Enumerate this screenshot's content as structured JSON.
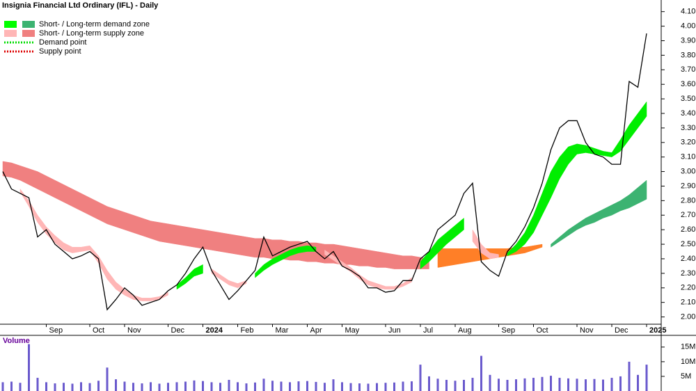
{
  "chart_data": {
    "type": "price-zones",
    "title": "Insignia Financial Ltd Ordinary (IFL) - Daily",
    "legend": [
      {
        "label": "Short- / Long-term demand zone",
        "colors": [
          "#00ff00",
          "#3cb371"
        ]
      },
      {
        "label": "Short- / Long-term supply zone",
        "colors": [
          "#ffb6b6",
          "#f08080"
        ]
      },
      {
        "label": "Demand point",
        "colors": [
          "#00dd00"
        ],
        "dotted": true
      },
      {
        "label": "Supply point",
        "colors": [
          "#dd0000"
        ],
        "dotted": true
      }
    ],
    "categories": [
      null,
      null,
      null,
      null,
      null,
      "Sep",
      null,
      null,
      null,
      null,
      "Oct",
      null,
      null,
      null,
      "Nov",
      null,
      null,
      null,
      null,
      "Dec",
      null,
      null,
      null,
      "2024",
      null,
      null,
      null,
      "Feb",
      null,
      null,
      null,
      "Mar",
      null,
      null,
      null,
      "Apr",
      null,
      null,
      null,
      "May",
      null,
      null,
      null,
      null,
      "Jun",
      null,
      null,
      null,
      "Jul",
      null,
      null,
      null,
      "Aug",
      null,
      null,
      null,
      null,
      "Sep",
      null,
      null,
      null,
      "Oct",
      null,
      null,
      null,
      null,
      "Nov",
      null,
      null,
      null,
      "Dec",
      null,
      null,
      null,
      "2025"
    ],
    "price": {
      "color": "#000000",
      "values": [
        3.0,
        2.88,
        2.85,
        2.82,
        2.55,
        2.6,
        2.5,
        2.45,
        2.4,
        2.42,
        2.45,
        2.4,
        2.05,
        2.12,
        2.2,
        2.15,
        2.08,
        2.1,
        2.12,
        2.18,
        2.22,
        2.3,
        2.4,
        2.48,
        2.32,
        2.22,
        2.12,
        2.18,
        2.25,
        2.32,
        2.55,
        2.42,
        2.45,
        2.48,
        2.5,
        2.52,
        2.45,
        2.4,
        2.45,
        2.35,
        2.32,
        2.28,
        2.2,
        2.2,
        2.17,
        2.18,
        2.25,
        2.25,
        2.4,
        2.45,
        2.6,
        2.65,
        2.7,
        2.85,
        2.92,
        2.38,
        2.32,
        2.28,
        2.45,
        2.52,
        2.62,
        2.75,
        2.92,
        3.15,
        3.3,
        3.35,
        3.35,
        3.2,
        3.12,
        3.1,
        3.05,
        3.05,
        3.62,
        3.58,
        3.95
      ]
    },
    "zones": [
      {
        "color": "#f08080",
        "upper": [
          3.07,
          3.06,
          3.04,
          3.02,
          3.0,
          2.97,
          2.94,
          2.91,
          2.88,
          2.85,
          2.82,
          2.79,
          2.76,
          2.74,
          2.72,
          2.7,
          2.68,
          2.66,
          2.65,
          2.64,
          2.63,
          2.62,
          2.61,
          2.6,
          2.59,
          2.58,
          2.57,
          2.56,
          2.55,
          2.54,
          2.54,
          2.53,
          2.53,
          2.52,
          2.52,
          2.51,
          2.51,
          2.5,
          2.5,
          2.49,
          2.48,
          2.47,
          2.46,
          2.45,
          2.44,
          2.43,
          2.42,
          2.42,
          2.41,
          2.4,
          null,
          null,
          null,
          null,
          null,
          null,
          null,
          null,
          null,
          null,
          null,
          null,
          null,
          null,
          null,
          null,
          null,
          null,
          null,
          null,
          null,
          null,
          null,
          null,
          null
        ],
        "lower": [
          2.97,
          2.96,
          2.94,
          2.91,
          2.88,
          2.85,
          2.82,
          2.79,
          2.76,
          2.73,
          2.7,
          2.67,
          2.64,
          2.62,
          2.6,
          2.58,
          2.56,
          2.54,
          2.52,
          2.51,
          2.5,
          2.49,
          2.48,
          2.47,
          2.46,
          2.45,
          2.44,
          2.43,
          2.42,
          2.41,
          2.41,
          2.4,
          2.4,
          2.39,
          2.39,
          2.38,
          2.38,
          2.37,
          2.37,
          2.36,
          2.36,
          2.35,
          2.35,
          2.34,
          2.34,
          2.33,
          2.33,
          2.33,
          2.33,
          2.33,
          null,
          null,
          null,
          null,
          null,
          null,
          null,
          null,
          null,
          null,
          null,
          null,
          null,
          null,
          null,
          null,
          null,
          null,
          null,
          null,
          null,
          null,
          null,
          null,
          null
        ]
      },
      {
        "color": "#ff7f27",
        "upper": [
          null,
          null,
          null,
          null,
          null,
          null,
          null,
          null,
          null,
          null,
          null,
          null,
          null,
          null,
          null,
          null,
          null,
          null,
          null,
          null,
          null,
          null,
          null,
          null,
          null,
          null,
          null,
          null,
          null,
          null,
          null,
          null,
          null,
          null,
          null,
          null,
          null,
          null,
          null,
          null,
          null,
          null,
          null,
          null,
          null,
          null,
          null,
          null,
          null,
          null,
          2.47,
          2.47,
          2.47,
          2.47,
          2.47,
          2.47,
          2.47,
          2.47,
          2.47,
          2.48,
          2.48,
          2.49,
          2.5,
          null,
          null,
          null,
          null,
          null,
          null,
          null,
          null,
          null,
          null,
          null,
          null
        ],
        "lower": [
          null,
          null,
          null,
          null,
          null,
          null,
          null,
          null,
          null,
          null,
          null,
          null,
          null,
          null,
          null,
          null,
          null,
          null,
          null,
          null,
          null,
          null,
          null,
          null,
          null,
          null,
          null,
          null,
          null,
          null,
          null,
          null,
          null,
          null,
          null,
          null,
          null,
          null,
          null,
          null,
          null,
          null,
          null,
          null,
          null,
          null,
          null,
          null,
          null,
          null,
          2.34,
          2.35,
          2.36,
          2.37,
          2.38,
          2.39,
          2.4,
          2.41,
          2.42,
          2.43,
          2.44,
          2.46,
          2.48,
          null,
          null,
          null,
          null,
          null,
          null,
          null,
          null,
          null,
          null,
          null,
          null
        ]
      },
      {
        "color": "#3cb371",
        "upper": [
          null,
          null,
          null,
          null,
          null,
          null,
          null,
          null,
          null,
          null,
          null,
          null,
          null,
          null,
          null,
          null,
          null,
          null,
          null,
          null,
          null,
          null,
          null,
          null,
          null,
          null,
          null,
          null,
          null,
          null,
          null,
          null,
          null,
          null,
          null,
          null,
          null,
          null,
          null,
          null,
          null,
          null,
          null,
          null,
          null,
          null,
          null,
          null,
          null,
          null,
          null,
          null,
          null,
          null,
          null,
          null,
          null,
          null,
          null,
          null,
          null,
          null,
          null,
          2.5,
          2.55,
          2.6,
          2.64,
          2.68,
          2.71,
          2.74,
          2.77,
          2.8,
          2.84,
          2.89,
          2.94
        ],
        "lower": [
          null,
          null,
          null,
          null,
          null,
          null,
          null,
          null,
          null,
          null,
          null,
          null,
          null,
          null,
          null,
          null,
          null,
          null,
          null,
          null,
          null,
          null,
          null,
          null,
          null,
          null,
          null,
          null,
          null,
          null,
          null,
          null,
          null,
          null,
          null,
          null,
          null,
          null,
          null,
          null,
          null,
          null,
          null,
          null,
          null,
          null,
          null,
          null,
          null,
          null,
          null,
          null,
          null,
          null,
          null,
          null,
          null,
          null,
          null,
          null,
          null,
          null,
          null,
          2.48,
          2.52,
          2.56,
          2.6,
          2.63,
          2.65,
          2.68,
          2.7,
          2.73,
          2.75,
          2.78,
          2.81
        ]
      },
      {
        "color": "#ffb6b6",
        "upper": [
          null,
          null,
          2.88,
          2.8,
          2.7,
          2.62,
          2.56,
          2.51,
          2.48,
          2.48,
          2.49,
          2.42,
          2.32,
          2.24,
          2.19,
          2.15,
          2.13,
          2.13,
          2.14,
          2.17,
          null,
          null,
          null,
          null,
          2.33,
          2.29,
          2.25,
          2.23,
          2.25,
          null,
          null,
          null,
          null,
          null,
          null,
          null,
          null,
          2.46,
          2.42,
          2.38,
          2.34,
          2.29,
          2.25,
          2.23,
          2.21,
          2.21,
          2.23,
          2.27,
          null,
          null,
          null,
          null,
          null,
          null,
          2.6,
          2.5,
          2.44,
          2.43,
          null,
          null,
          null,
          null,
          null,
          null,
          null,
          null,
          null,
          null,
          null,
          null,
          null,
          null,
          null,
          null,
          null
        ],
        "lower": [
          null,
          null,
          2.86,
          2.76,
          2.65,
          2.57,
          2.51,
          2.46,
          2.44,
          2.45,
          2.46,
          2.37,
          2.26,
          2.19,
          2.15,
          2.12,
          2.11,
          2.11,
          2.12,
          2.15,
          null,
          null,
          null,
          null,
          2.3,
          2.26,
          2.22,
          2.2,
          2.23,
          null,
          null,
          null,
          null,
          null,
          null,
          null,
          null,
          2.43,
          2.39,
          2.35,
          2.31,
          2.26,
          2.22,
          2.2,
          2.19,
          2.19,
          2.21,
          2.24,
          null,
          null,
          null,
          null,
          null,
          null,
          2.52,
          2.44,
          2.4,
          2.41,
          null,
          null,
          null,
          null,
          null,
          null,
          null,
          null,
          null,
          null,
          null,
          null,
          null,
          null,
          null,
          null,
          null
        ]
      },
      {
        "color": "#00ee00",
        "upper": [
          null,
          null,
          null,
          null,
          null,
          null,
          null,
          null,
          null,
          null,
          null,
          null,
          null,
          null,
          null,
          null,
          null,
          null,
          null,
          null,
          2.22,
          2.27,
          2.33,
          2.36,
          null,
          null,
          null,
          null,
          null,
          2.3,
          2.36,
          2.4,
          2.43,
          2.46,
          2.48,
          2.49,
          2.48,
          null,
          null,
          null,
          null,
          null,
          null,
          null,
          null,
          null,
          null,
          null,
          2.38,
          2.45,
          2.53,
          2.58,
          2.63,
          2.68,
          null,
          null,
          null,
          null,
          2.44,
          2.5,
          2.58,
          2.7,
          2.85,
          3.0,
          3.1,
          3.17,
          3.19,
          3.18,
          3.16,
          3.14,
          3.13,
          3.22,
          3.32,
          3.4,
          3.48
        ],
        "lower": [
          null,
          null,
          null,
          null,
          null,
          null,
          null,
          null,
          null,
          null,
          null,
          null,
          null,
          null,
          null,
          null,
          null,
          null,
          null,
          null,
          2.19,
          2.23,
          2.28,
          2.3,
          null,
          null,
          null,
          null,
          null,
          2.27,
          2.32,
          2.36,
          2.39,
          2.42,
          2.44,
          2.45,
          2.45,
          null,
          null,
          null,
          null,
          null,
          null,
          null,
          null,
          null,
          null,
          null,
          2.33,
          2.38,
          2.44,
          2.5,
          2.55,
          2.6,
          null,
          null,
          null,
          null,
          2.42,
          2.45,
          2.5,
          2.58,
          2.7,
          2.82,
          2.95,
          3.05,
          3.12,
          3.13,
          3.12,
          3.11,
          3.1,
          3.14,
          3.22,
          3.3,
          3.38
        ]
      }
    ],
    "ylim": [
      1.95,
      4.18
    ],
    "yticks": [
      {
        "value": 2.0,
        "label": "2.00"
      },
      {
        "value": 2.1,
        "label": "2.10"
      },
      {
        "value": 2.2,
        "label": "2.20"
      },
      {
        "value": 2.3,
        "label": "2.30"
      },
      {
        "value": 2.4,
        "label": "2.40"
      },
      {
        "value": 2.5,
        "label": "2.50"
      },
      {
        "value": 2.6,
        "label": "2.60"
      },
      {
        "value": 2.7,
        "label": "2.70"
      },
      {
        "value": 2.8,
        "label": "2.80"
      },
      {
        "value": 2.9,
        "label": "2.90"
      },
      {
        "value": 3.0,
        "label": "3.00"
      },
      {
        "value": 3.1,
        "label": "3.10"
      },
      {
        "value": 3.2,
        "label": "3.20"
      },
      {
        "value": 3.3,
        "label": "3.30"
      },
      {
        "value": 3.4,
        "label": "3.40"
      },
      {
        "value": 3.5,
        "label": "3.50"
      },
      {
        "value": 3.6,
        "label": "3.60"
      },
      {
        "value": 3.7,
        "label": "3.70"
      },
      {
        "value": 3.8,
        "label": "3.80"
      },
      {
        "value": 3.9,
        "label": "3.90"
      },
      {
        "value": 4.0,
        "label": "4.00"
      },
      {
        "value": 4.1,
        "label": "4.10"
      }
    ],
    "volume": {
      "title": "Volume",
      "color": "#6a5acd",
      "values": [
        3000000,
        3200000,
        2800000,
        16000000,
        4500000,
        3000000,
        2600000,
        2800000,
        2500000,
        3000000,
        2700000,
        3500000,
        8000000,
        4000000,
        3200000,
        2800000,
        2600000,
        3000000,
        2500000,
        2800000,
        3000000,
        3200000,
        3600000,
        3400000,
        3000000,
        2800000,
        3800000,
        3000000,
        2600000,
        2900000,
        4200000,
        3500000,
        3200000,
        3000000,
        3300000,
        3400000,
        3100000,
        2800000,
        4000000,
        3000000,
        2700000,
        2600000,
        2500000,
        2700000,
        2800000,
        2900000,
        3200000,
        3300000,
        9000000,
        5000000,
        4200000,
        3800000,
        3500000,
        3800000,
        4500000,
        12000000,
        5500000,
        4200000,
        3800000,
        4000000,
        4300000,
        4500000,
        4800000,
        5200000,
        4500000,
        4300000,
        4200000,
        4000000,
        4100000,
        3900000,
        4500000,
        5000000,
        10000000,
        5500000,
        9000000
      ],
      "ylim": [
        0,
        19000000
      ],
      "yticks": [
        {
          "value": 5000000,
          "label": "5M"
        },
        {
          "value": 10000000,
          "label": "10M"
        },
        {
          "value": 15000000,
          "label": "15M"
        }
      ]
    }
  }
}
